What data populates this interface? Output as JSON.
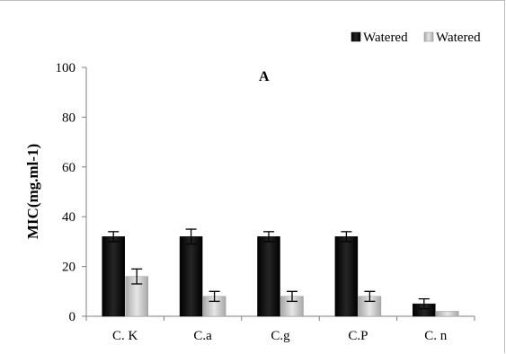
{
  "chart_data": {
    "type": "bar",
    "title": "",
    "panel_label": "A",
    "xlabel": "",
    "ylabel": "MIC(mg.ml-1)",
    "ylim": [
      0,
      100
    ],
    "yticks": [
      "0",
      "20",
      "40",
      "60",
      "80",
      "100"
    ],
    "categories": [
      "C. K",
      "C.a",
      "C.g",
      "C.P",
      "C. n"
    ],
    "grid": false,
    "legend_position": "top-right",
    "series": [
      {
        "name": "Watered",
        "values": [
          32,
          32,
          32,
          32,
          5
        ],
        "errors": [
          2,
          3,
          2,
          2,
          2
        ],
        "color": "#0d0d0d"
      },
      {
        "name": "Watered",
        "values": [
          16,
          8,
          8,
          8,
          2
        ],
        "errors": [
          3,
          2,
          2,
          2,
          0
        ],
        "color": "#bdbdbd"
      }
    ]
  }
}
